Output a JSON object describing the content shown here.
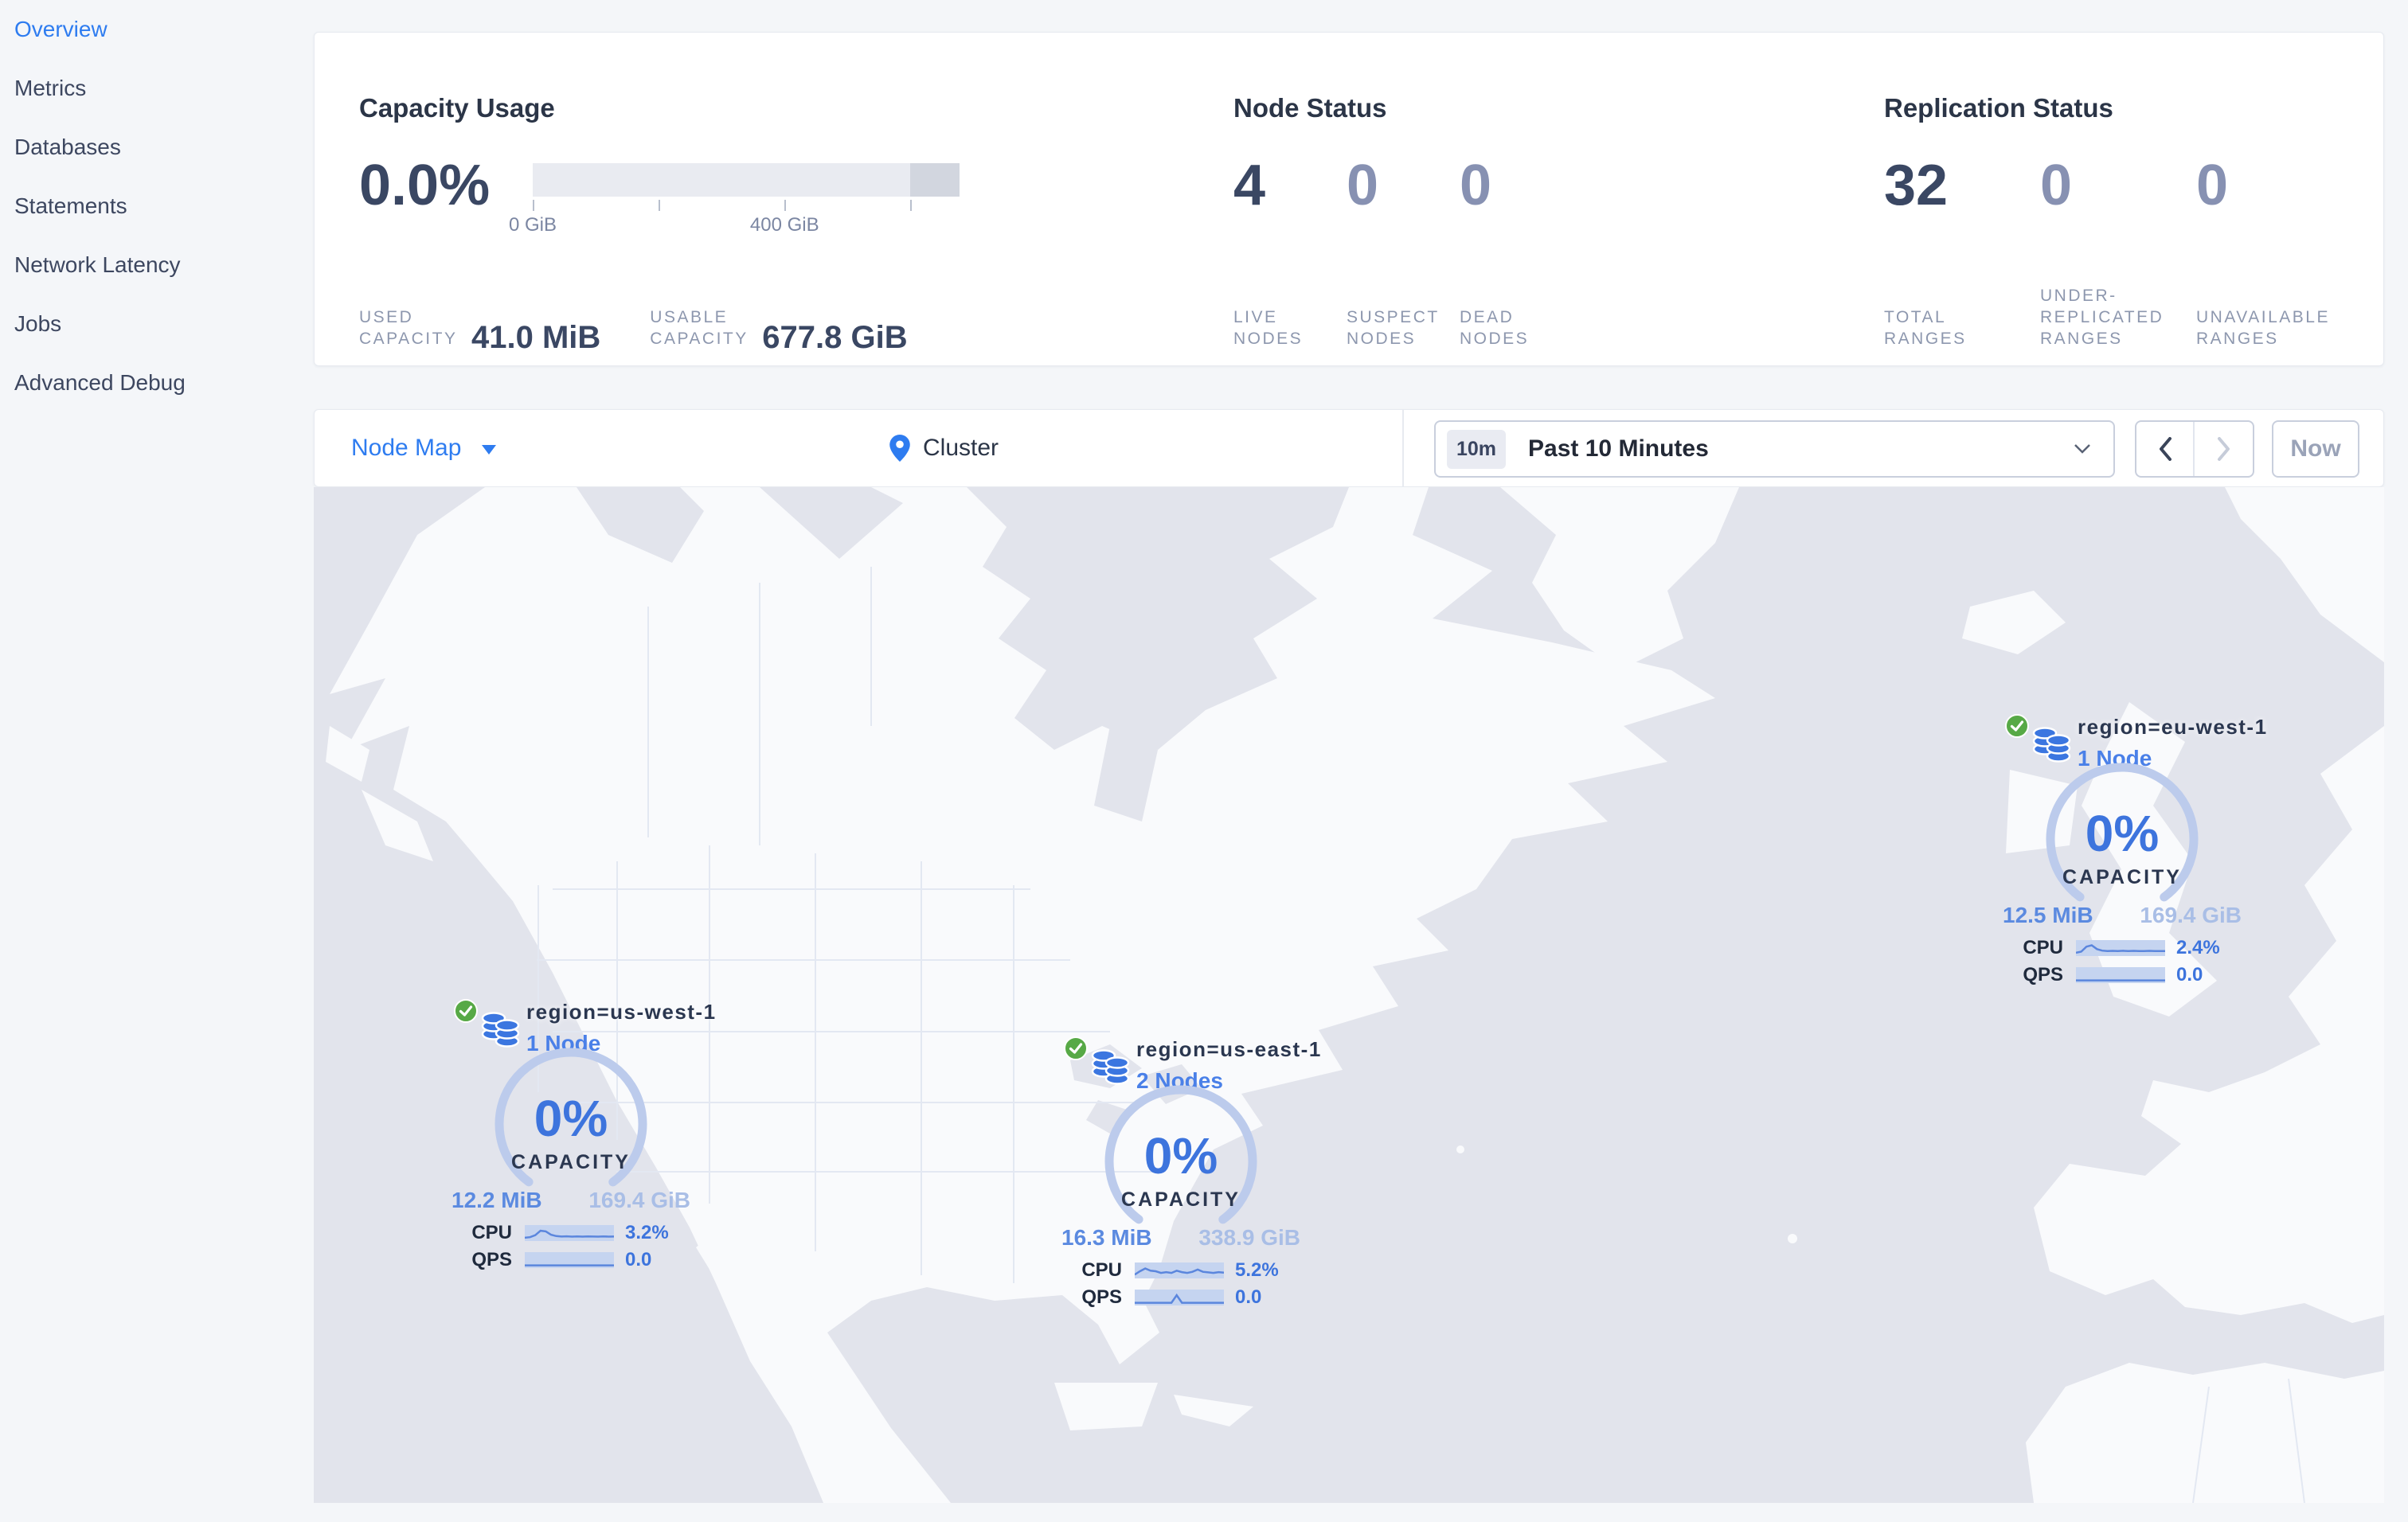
{
  "sidebar": {
    "items": [
      {
        "label": "Overview",
        "active": true
      },
      {
        "label": "Metrics",
        "active": false
      },
      {
        "label": "Databases",
        "active": false
      },
      {
        "label": "Statements",
        "active": false
      },
      {
        "label": "Network Latency",
        "active": false
      },
      {
        "label": "Jobs",
        "active": false
      },
      {
        "label": "Advanced Debug",
        "active": false
      }
    ]
  },
  "summary": {
    "capacity": {
      "title": "Capacity Usage",
      "percent": "0.0%",
      "tick_labels": [
        "0 GiB",
        "400 GiB"
      ],
      "stats": [
        {
          "label": "USED CAPACITY",
          "value": "41.0 MiB"
        },
        {
          "label": "USABLE CAPACITY",
          "value": "677.8 GiB"
        }
      ]
    },
    "node_status": {
      "title": "Node Status",
      "stats": [
        {
          "value": "4",
          "label": "LIVE NODES"
        },
        {
          "value": "0",
          "label": "SUSPECT NODES"
        },
        {
          "value": "0",
          "label": "DEAD NODES"
        }
      ]
    },
    "replication": {
      "title": "Replication Status",
      "stats": [
        {
          "value": "32",
          "label": "TOTAL RANGES"
        },
        {
          "value": "0",
          "label": "UNDER-REPLICATED RANGES"
        },
        {
          "value": "0",
          "label": "UNAVAILABLE RANGES"
        }
      ]
    }
  },
  "toolbar": {
    "view_label": "Node Map",
    "breadcrumb": "Cluster",
    "time_badge": "10m",
    "time_value": "Past 10 Minutes",
    "now_label": "Now"
  },
  "markers": [
    {
      "region": "region=us-west-1",
      "nodes": "1 Node",
      "percent": "0%",
      "capacity_label": "CAPACITY",
      "used": "12.2 MiB",
      "total": "169.4 GiB",
      "rows": [
        {
          "label": "CPU",
          "value": "3.2%",
          "spark": [
            0.15,
            0.2,
            0.38,
            0.78,
            0.72,
            0.42,
            0.3,
            0.26,
            0.28,
            0.25,
            0.27,
            0.25,
            0.27,
            0.26,
            0.25,
            0.27,
            0.25,
            0.26
          ]
        },
        {
          "label": "QPS",
          "value": "0.0",
          "spark": [
            0.1,
            0.1,
            0.1,
            0.1,
            0.1,
            0.1,
            0.1,
            0.1,
            0.1,
            0.1,
            0.1,
            0.1,
            0.1,
            0.1,
            0.1,
            0.1,
            0.1,
            0.1
          ]
        }
      ]
    },
    {
      "region": "region=us-east-1",
      "nodes": "2 Nodes",
      "percent": "0%",
      "capacity_label": "CAPACITY",
      "used": "16.3 MiB",
      "total": "338.9 GiB",
      "rows": [
        {
          "label": "CPU",
          "value": "5.2%",
          "spark": [
            0.2,
            0.5,
            0.75,
            0.55,
            0.5,
            0.35,
            0.42,
            0.35,
            0.55,
            0.42,
            0.35,
            0.45,
            0.65,
            0.45,
            0.4,
            0.35,
            0.42,
            0.38
          ]
        },
        {
          "label": "QPS",
          "value": "0.0",
          "spark": [
            0.1,
            0.1,
            0.1,
            0.1,
            0.1,
            0.1,
            0.1,
            0.1,
            0.78,
            0.1,
            0.1,
            0.1,
            0.1,
            0.1,
            0.1,
            0.1,
            0.1,
            0.1
          ]
        }
      ]
    },
    {
      "region": "region=eu-west-1",
      "nodes": "1 Node",
      "percent": "0%",
      "capacity_label": "CAPACITY",
      "used": "12.5 MiB",
      "total": "169.4 GiB",
      "rows": [
        {
          "label": "CPU",
          "value": "2.4%",
          "spark": [
            0.15,
            0.25,
            0.7,
            0.82,
            0.48,
            0.34,
            0.3,
            0.32,
            0.3,
            0.33,
            0.3,
            0.32,
            0.31,
            0.3,
            0.32,
            0.3,
            0.31,
            0.3
          ]
        },
        {
          "label": "QPS",
          "value": "0.0",
          "spark": [
            0.1,
            0.1,
            0.1,
            0.1,
            0.1,
            0.1,
            0.1,
            0.1,
            0.1,
            0.1,
            0.1,
            0.1,
            0.1,
            0.1,
            0.1,
            0.1,
            0.1,
            0.1
          ]
        }
      ]
    }
  ],
  "colors": {
    "accent_blue": "#2e7cf0",
    "gauge_blue": "#3d74dd",
    "gauge_arc": "#bccbec",
    "status_green": "#57a946",
    "dim_number": "#8791b2",
    "ocean": "#e2e4ec",
    "land": "#f9fafc"
  }
}
